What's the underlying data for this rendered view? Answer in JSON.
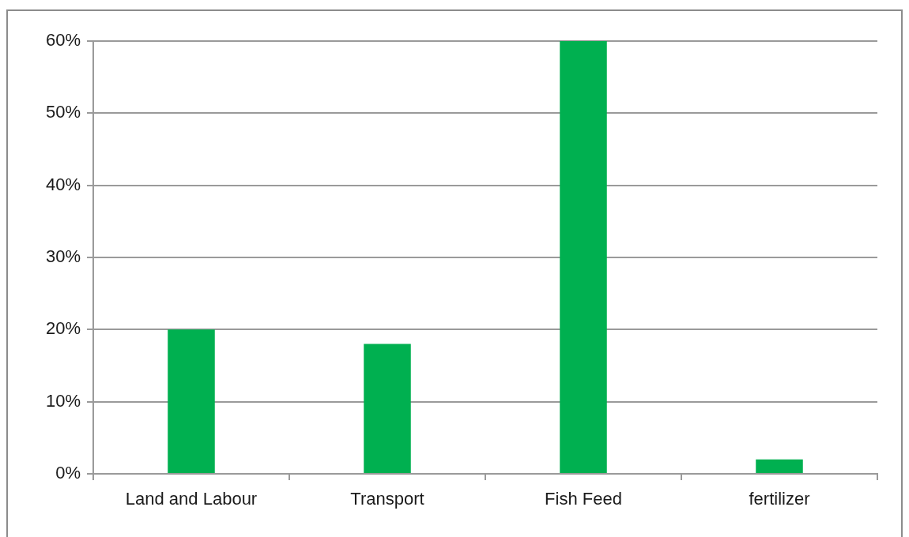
{
  "chart_data": {
    "type": "bar",
    "categories": [
      "Land and Labour",
      "Transport",
      "Fish Feed",
      "fertilizer"
    ],
    "values": [
      20,
      18,
      60,
      2
    ],
    "color": "#00b050",
    "ylim": [
      0,
      60
    ],
    "yticks": [
      {
        "value": 0,
        "label": "0%"
      },
      {
        "value": 10,
        "label": "10%"
      },
      {
        "value": 20,
        "label": "20%"
      },
      {
        "value": 30,
        "label": "30%"
      },
      {
        "value": 40,
        "label": "40%"
      },
      {
        "value": 50,
        "label": "50%"
      },
      {
        "value": 60,
        "label": "60%"
      }
    ],
    "grid": "y",
    "legend": false
  }
}
